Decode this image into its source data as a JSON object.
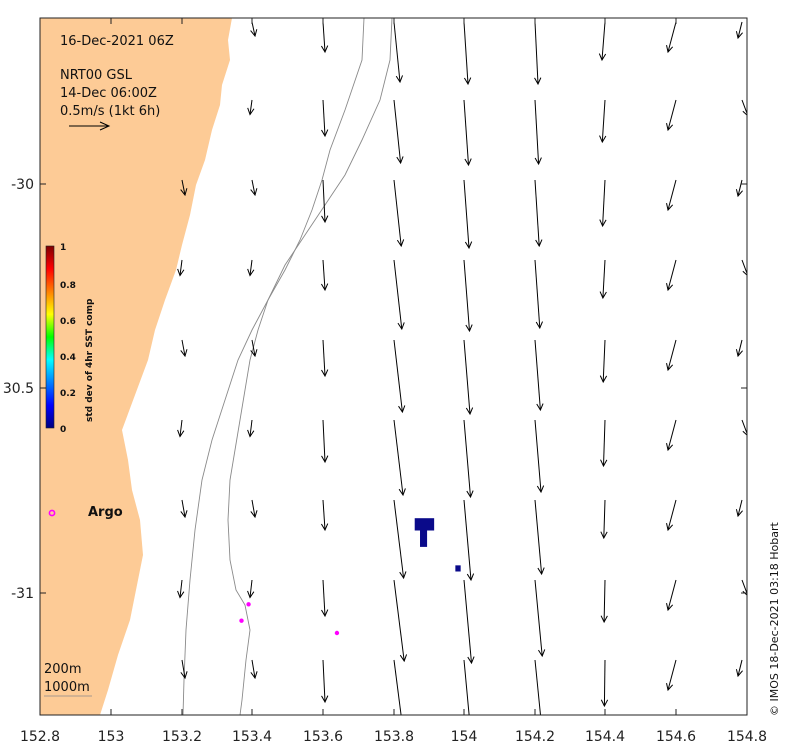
{
  "header": {
    "date": "16-Dec-2021 06Z",
    "product": "NRT00 GSL",
    "valid_time": "14-Dec 06:00Z",
    "scale": "0.5m/s (1kt 6h)"
  },
  "colorbar": {
    "title": "std dev of 4hr SST comp",
    "ticks": [
      "0",
      "0.2",
      "0.4",
      "0.6",
      "0.8",
      "1"
    ]
  },
  "legend": {
    "argo_label": "Argo",
    "depth_200": "200m",
    "depth_1000": "1000m"
  },
  "credit": "© IMOS 18-Dec-2021 03:18 Hobart",
  "axes": {
    "x_ticks": [
      "152.8",
      "153",
      "153.2",
      "153.4",
      "153.6",
      "153.8",
      "154",
      "154.2",
      "154.4",
      "154.6",
      "154.8"
    ],
    "y_ticks": [
      "-30",
      "30.5",
      "-31"
    ],
    "xlim": [
      152.8,
      154.8
    ],
    "ylim": [
      -31.3,
      -29.6
    ]
  },
  "colors": {
    "land": "#fdcb96",
    "argo": "#ff00ff",
    "sst_patch": "#0a0a8a",
    "arrow": "#000000",
    "isobath": "#7f7f7f"
  },
  "argo_floats": [
    {
      "lon": 153.39,
      "lat": -31.03
    },
    {
      "lon": 153.37,
      "lat": -31.07
    },
    {
      "lon": 153.64,
      "lat": -31.1
    }
  ],
  "sst_patches": [
    {
      "lon_min": 153.86,
      "lon_max": 153.915,
      "lat_min": -30.85,
      "lat_max": -30.82
    },
    {
      "lon_min": 153.875,
      "lon_max": 153.895,
      "lat_min": -30.89,
      "lat_max": -30.85
    },
    {
      "lon_min": 153.975,
      "lon_max": 153.99,
      "lat_min": -30.95,
      "lat_max": -30.935
    }
  ]
}
